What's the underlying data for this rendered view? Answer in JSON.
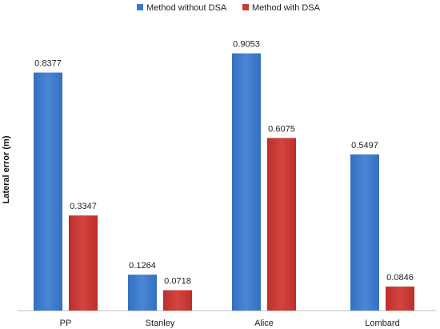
{
  "chart_data": {
    "type": "bar",
    "title": "",
    "xlabel": "",
    "ylabel": "Lateral error (m)",
    "ylim": [
      0,
      1.0
    ],
    "grid": false,
    "legend_position": "top-center",
    "categories": [
      "PP",
      "Stanley",
      "Alice",
      "Lombard"
    ],
    "series": [
      {
        "name": "Method without DSA",
        "color": "#3d78c8",
        "values": [
          0.8377,
          0.1264,
          0.9053,
          0.5497
        ],
        "labels": [
          "0.8377",
          "0.1264",
          "0.9053",
          "0.5497"
        ]
      },
      {
        "name": "Method with DSA",
        "color": "#c83a36",
        "values": [
          0.3347,
          0.0718,
          0.6075,
          0.0846
        ],
        "labels": [
          "0.3347",
          "0.0718",
          "0.6075",
          "0.0846"
        ]
      }
    ]
  }
}
